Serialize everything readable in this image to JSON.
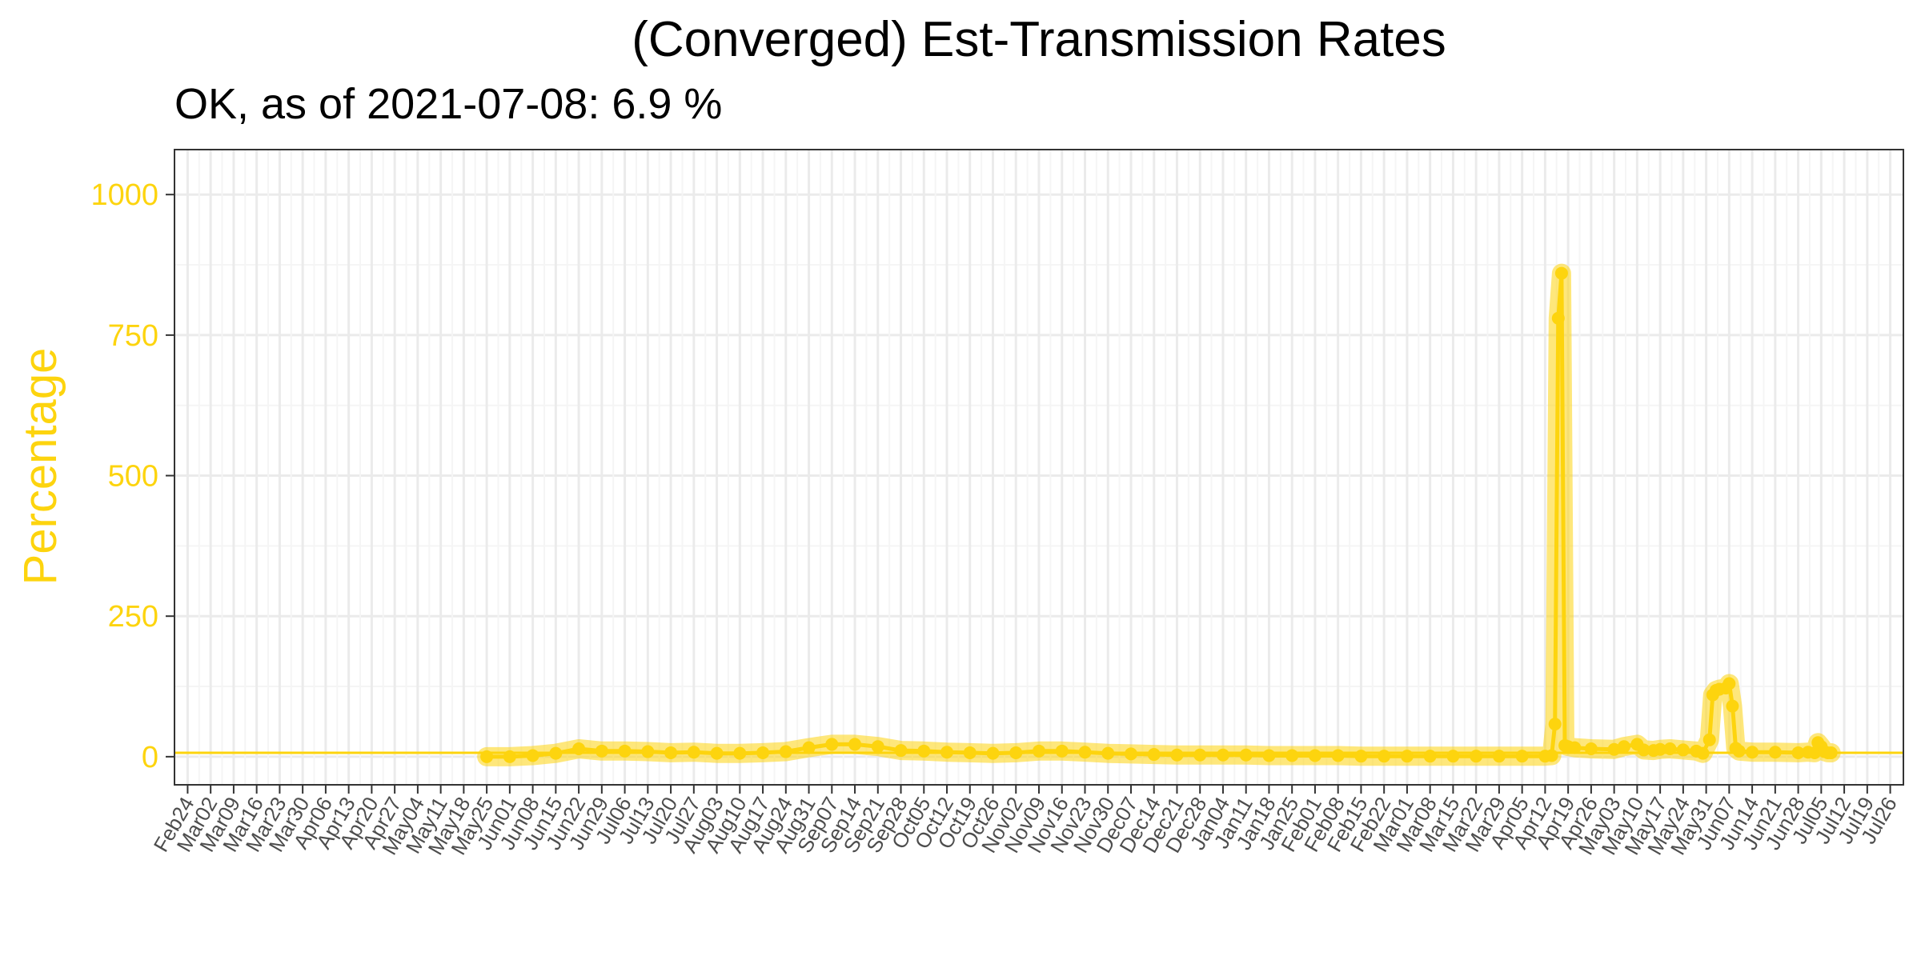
{
  "colors": {
    "series": "#FDD40E",
    "grid_major": "#EBEBEB",
    "grid_minor": "#F5F5F5",
    "panel_border": "#333333",
    "tick_text": "#4D4D4D"
  },
  "chart_data": {
    "type": "line",
    "title": "(Converged) Est-Transmission Rates",
    "subtitle": "OK, as of 2021-07-08:  6.9 %",
    "ylabel": "Percentage",
    "xlabel": "",
    "ylim": [
      -50,
      1080
    ],
    "xlim": [
      "2020-02-20",
      "2021-07-30"
    ],
    "grid": true,
    "y_ticks": [
      0,
      250,
      500,
      750,
      1000
    ],
    "x_tick_labels": [
      "Feb24",
      "Mar02",
      "Mar09",
      "Mar16",
      "Mar23",
      "Mar30",
      "Apr06",
      "Apr13",
      "Apr20",
      "Apr27",
      "May04",
      "May11",
      "May18",
      "May25",
      "Jun01",
      "Jun08",
      "Jun15",
      "Jun22",
      "Jun29",
      "Jul06",
      "Jul13",
      "Jul20",
      "Jul27",
      "Aug03",
      "Aug10",
      "Aug17",
      "Aug24",
      "Aug31",
      "Sep07",
      "Sep14",
      "Sep21",
      "Sep28",
      "Oct05",
      "Oct12",
      "Oct19",
      "Oct26",
      "Nov02",
      "Nov09",
      "Nov16",
      "Nov23",
      "Nov30",
      "Dec07",
      "Dec14",
      "Dec21",
      "Dec28",
      "Jan04",
      "Jan11",
      "Jan18",
      "Jan25",
      "Feb01",
      "Feb08",
      "Feb15",
      "Feb22",
      "Mar01",
      "Mar08",
      "Mar15",
      "Mar22",
      "Mar29",
      "Apr05",
      "Apr12",
      "Apr19",
      "Apr26",
      "May03",
      "May10",
      "May17",
      "May24",
      "May31",
      "Jun07",
      "Jun14",
      "Jun21",
      "Jun28",
      "Jul05",
      "Jul12",
      "Jul19",
      "Jul26"
    ],
    "x_tick_start": "2020-02-24",
    "x_tick_step_days": 7,
    "reference_line": 6.9,
    "series": [
      {
        "x": [
          "2020-05-25",
          "2020-06-01",
          "2020-06-08",
          "2020-06-15",
          "2020-06-22",
          "2020-06-29",
          "2020-07-06",
          "2020-07-13",
          "2020-07-20",
          "2020-07-27",
          "2020-08-03",
          "2020-08-10",
          "2020-08-17",
          "2020-08-24",
          "2020-08-31",
          "2020-09-07",
          "2020-09-14",
          "2020-09-21",
          "2020-09-28",
          "2020-10-05",
          "2020-10-12",
          "2020-10-19",
          "2020-10-26",
          "2020-11-02",
          "2020-11-09",
          "2020-11-16",
          "2020-11-23",
          "2020-11-30",
          "2020-12-07",
          "2020-12-14",
          "2020-12-21",
          "2020-12-28",
          "2021-01-04",
          "2021-01-11",
          "2021-01-18",
          "2021-01-25",
          "2021-02-01",
          "2021-02-08",
          "2021-02-15",
          "2021-02-22",
          "2021-03-01",
          "2021-03-08",
          "2021-03-15",
          "2021-03-22",
          "2021-03-29",
          "2021-04-05",
          "2021-04-12",
          "2021-04-14",
          "2021-04-15",
          "2021-04-16",
          "2021-04-17",
          "2021-04-18",
          "2021-04-19",
          "2021-04-21",
          "2021-04-26",
          "2021-05-03",
          "2021-05-06",
          "2021-05-10",
          "2021-05-12",
          "2021-05-15",
          "2021-05-17",
          "2021-05-20",
          "2021-05-24",
          "2021-05-28",
          "2021-05-30",
          "2021-06-01",
          "2021-06-02",
          "2021-06-03",
          "2021-06-04",
          "2021-06-06",
          "2021-06-07",
          "2021-06-08",
          "2021-06-09",
          "2021-06-10",
          "2021-06-14",
          "2021-06-21",
          "2021-06-28",
          "2021-07-01",
          "2021-07-03",
          "2021-07-04",
          "2021-07-05",
          "2021-07-06",
          "2021-07-07",
          "2021-07-08"
        ],
        "y": [
          0,
          0,
          2,
          6,
          14,
          10,
          10,
          9,
          7,
          8,
          6,
          6,
          7,
          9,
          16,
          22,
          22,
          18,
          11,
          10,
          8,
          7,
          6,
          7,
          10,
          10,
          8,
          6,
          5,
          4,
          3,
          3,
          3,
          3,
          2,
          2,
          2,
          2,
          1,
          1,
          1,
          1,
          1,
          1,
          1,
          1,
          1,
          2,
          58,
          780,
          860,
          20,
          18,
          16,
          14,
          13,
          18,
          22,
          12,
          11,
          13,
          14,
          12,
          10,
          6,
          30,
          110,
          118,
          120,
          122,
          130,
          90,
          15,
          10,
          8,
          8,
          7,
          8,
          7,
          25,
          18,
          9,
          7,
          6.9
        ]
      }
    ]
  }
}
